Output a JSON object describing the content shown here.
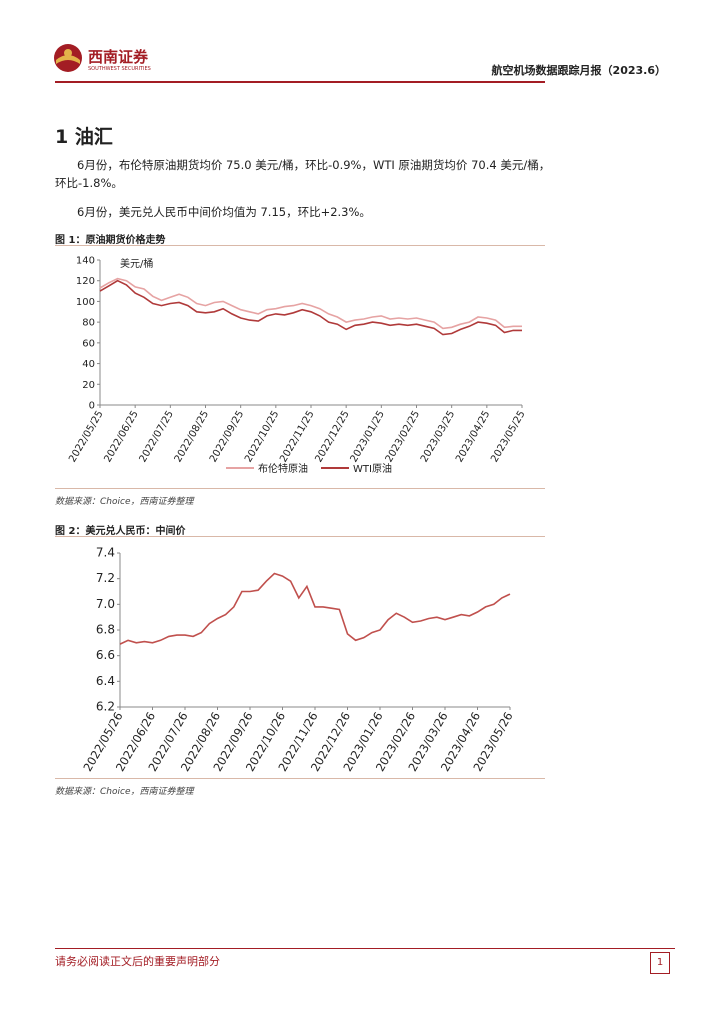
{
  "header": {
    "logo_name": "西南证券",
    "logo_english": "SOUTHWEST SECURITIES",
    "report_title": "航空机场数据跟踪月报（2023.6）"
  },
  "section": {
    "heading": "1 油汇",
    "paragraphs": [
      "6月份，布伦特原油期货均价 75.0 美元/桶，环比-0.9%，WTI 原油期货均价 70.4 美元/桶，环比-1.8%。",
      "6月份，美元兑人民币中间价均值为 7.15，环比+2.3%。"
    ]
  },
  "figures": [
    {
      "caption": "图 1：原油期货价格走势",
      "source": "数据来源：Choice，西南证券整理"
    },
    {
      "caption": "图 2：美元兑人民币：中间价",
      "source": "数据来源：Choice，西南证券整理"
    }
  ],
  "footer": {
    "notice": "请务必阅读正文后的重要声明部分",
    "page": "1"
  },
  "chart_data": [
    {
      "type": "line",
      "ylabel": "美元/桶",
      "ylim": [
        0,
        140
      ],
      "yticks": [
        0,
        20,
        40,
        60,
        80,
        100,
        120,
        140
      ],
      "legend": "bottom",
      "categories": [
        "2022/05/25",
        null,
        null,
        null,
        "2022/06/25",
        null,
        null,
        null,
        "2022/07/25",
        null,
        null,
        null,
        "2022/08/25",
        null,
        null,
        null,
        "2022/09/25",
        null,
        null,
        null,
        "2022/10/25",
        null,
        null,
        null,
        "2022/11/25",
        null,
        null,
        null,
        "2022/12/25",
        null,
        null,
        null,
        "2023/01/25",
        null,
        null,
        null,
        "2023/02/25",
        null,
        null,
        null,
        "2023/03/25",
        null,
        null,
        null,
        "2023/04/25",
        null,
        null,
        null,
        "2023/05/25"
      ],
      "series": [
        {
          "name": "布伦特原油",
          "color": "#e6a3a3",
          "values": [
            113,
            118,
            122,
            120,
            114,
            112,
            105,
            101,
            104,
            107,
            104,
            98,
            96,
            99,
            100,
            96,
            92,
            90,
            88,
            92,
            93,
            95,
            96,
            98,
            96,
            93,
            88,
            85,
            80,
            82,
            83,
            85,
            86,
            83,
            84,
            83,
            84,
            82,
            80,
            74,
            75,
            78,
            80,
            85,
            84,
            82,
            75,
            76,
            76
          ]
        },
        {
          "name": "WTI原油",
          "color": "#b03a3a",
          "values": [
            110,
            115,
            120,
            116,
            108,
            104,
            98,
            96,
            98,
            99,
            96,
            90,
            89,
            90,
            93,
            88,
            84,
            82,
            81,
            86,
            88,
            87,
            89,
            92,
            90,
            86,
            80,
            78,
            73,
            77,
            78,
            80,
            79,
            77,
            78,
            77,
            78,
            76,
            74,
            68,
            69,
            73,
            76,
            80,
            79,
            77,
            70,
            72,
            72
          ]
        }
      ]
    },
    {
      "type": "line",
      "ylim": [
        6.2,
        7.4
      ],
      "yticks": [
        6.2,
        6.4,
        6.6,
        6.8,
        {
          "value": 7,
          "label": "7.0"
        },
        7.2,
        7.4
      ],
      "categories": [
        "2022/05/26",
        null,
        null,
        null,
        "2022/06/26",
        null,
        null,
        null,
        "2022/07/26",
        null,
        null,
        null,
        "2022/08/26",
        null,
        null,
        null,
        "2022/09/26",
        null,
        null,
        null,
        "2022/10/26",
        null,
        null,
        null,
        "2022/11/26",
        null,
        null,
        null,
        "2022/12/26",
        null,
        null,
        null,
        "2023/01/26",
        null,
        null,
        null,
        "2023/02/26",
        null,
        null,
        null,
        "2023/03/26",
        null,
        null,
        null,
        "2023/04/26",
        null,
        null,
        null,
        "2023/05/26"
      ],
      "series": [
        {
          "color": "#c0504d",
          "values": [
            6.69,
            6.72,
            6.7,
            6.71,
            6.7,
            6.72,
            6.75,
            6.76,
            6.76,
            6.75,
            6.78,
            6.85,
            6.89,
            6.92,
            6.98,
            7.1,
            7.1,
            7.11,
            7.18,
            7.24,
            7.22,
            7.18,
            7.05,
            7.14,
            6.98,
            6.98,
            6.97,
            6.96,
            6.77,
            6.72,
            6.74,
            6.78,
            6.8,
            6.88,
            6.93,
            6.9,
            6.86,
            6.87,
            6.89,
            6.9,
            6.88,
            6.9,
            6.92,
            6.91,
            6.94,
            6.98,
            7.0,
            7.05,
            7.08
          ]
        }
      ]
    }
  ]
}
